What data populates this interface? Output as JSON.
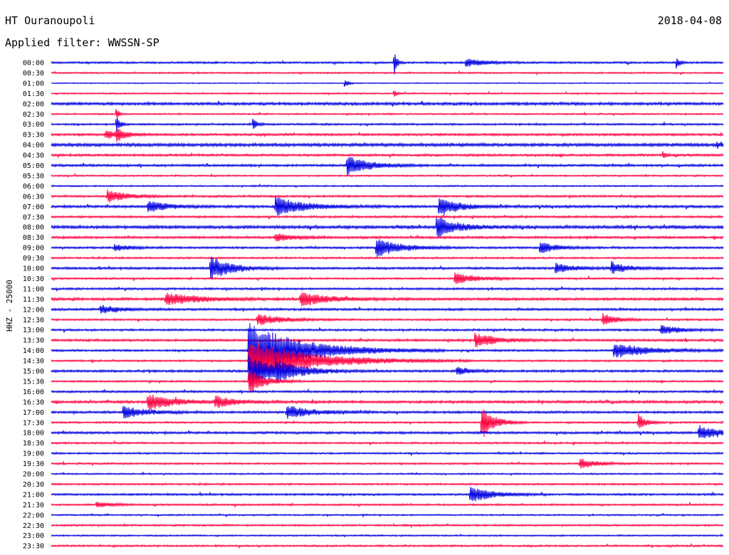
{
  "header": {
    "station": "HT Ouranoupoli",
    "date": "2018-04-08",
    "filter": "Applied filter: WWSSN-SP"
  },
  "colors": {
    "even_row": "#0000e0",
    "odd_row": "#ff0040"
  },
  "chart_data": {
    "type": "line",
    "title": "HT Ouranoupoli",
    "ylabel": "HHZ - 25000",
    "y_ticks": [
      "00:00",
      "00:30",
      "01:00",
      "01:30",
      "02:00",
      "02:30",
      "03:00",
      "03:30",
      "04:00",
      "04:30",
      "05:00",
      "05:30",
      "06:00",
      "06:30",
      "07:00",
      "07:30",
      "08:00",
      "08:30",
      "09:00",
      "09:30",
      "10:00",
      "10:30",
      "11:00",
      "11:30",
      "12:00",
      "12:30",
      "13:00",
      "13:30",
      "14:00",
      "14:30",
      "15:00",
      "15:30",
      "16:00",
      "16:30",
      "17:00",
      "17:30",
      "18:00",
      "18:30",
      "19:00",
      "19:30",
      "20:00",
      "20:30",
      "21:00",
      "21:30",
      "22:00",
      "22:30",
      "23:00",
      "23:30"
    ],
    "x_range_minutes": [
      0,
      30
    ],
    "noise_amplitude": [
      1.5,
      1.2,
      0.8,
      1.2,
      2.2,
      1.2,
      1.5,
      1.8,
      2.5,
      1.8,
      1.8,
      1.2,
      1.2,
      1.6,
      2.0,
      1.6,
      2.4,
      1.8,
      1.6,
      1.4,
      1.8,
      1.4,
      1.6,
      2.0,
      1.8,
      1.4,
      1.6,
      1.8,
      1.6,
      1.4,
      1.8,
      1.4,
      1.6,
      2.0,
      1.8,
      1.4,
      1.8,
      1.4,
      1.4,
      1.4,
      1.2,
      1.4,
      1.6,
      1.4,
      1.2,
      1.4,
      1.2,
      1.4
    ],
    "events": [
      {
        "row": 0,
        "t": 15.3,
        "amp": 18,
        "dur": 0.12
      },
      {
        "row": 0,
        "t": 18.5,
        "amp": 6,
        "dur": 0.8
      },
      {
        "row": 0,
        "t": 27.9,
        "amp": 8,
        "dur": 0.15
      },
      {
        "row": 2,
        "t": 13.1,
        "amp": 6,
        "dur": 0.15
      },
      {
        "row": 3,
        "t": 15.3,
        "amp": 6,
        "dur": 0.12
      },
      {
        "row": 5,
        "t": 2.9,
        "amp": 10,
        "dur": 0.1
      },
      {
        "row": 6,
        "t": 2.9,
        "amp": 14,
        "dur": 0.15
      },
      {
        "row": 6,
        "t": 9.0,
        "amp": 10,
        "dur": 0.15
      },
      {
        "row": 7,
        "t": 2.4,
        "amp": 6,
        "dur": 0.5
      },
      {
        "row": 7,
        "t": 2.9,
        "amp": 8,
        "dur": 0.4
      },
      {
        "row": 8,
        "t": 29.7,
        "amp": 5,
        "dur": 0.12
      },
      {
        "row": 9,
        "t": 27.3,
        "amp": 6,
        "dur": 0.12
      },
      {
        "row": 10,
        "t": 13.2,
        "amp": 14,
        "dur": 0.9
      },
      {
        "row": 13,
        "t": 2.5,
        "amp": 9,
        "dur": 0.8
      },
      {
        "row": 14,
        "t": 4.3,
        "amp": 8,
        "dur": 0.8
      },
      {
        "row": 14,
        "t": 10.0,
        "amp": 13,
        "dur": 1.2
      },
      {
        "row": 14,
        "t": 17.3,
        "amp": 14,
        "dur": 0.8
      },
      {
        "row": 16,
        "t": 17.2,
        "amp": 14,
        "dur": 0.9
      },
      {
        "row": 17,
        "t": 10.0,
        "amp": 6,
        "dur": 0.7
      },
      {
        "row": 18,
        "t": 2.8,
        "amp": 5,
        "dur": 0.6
      },
      {
        "row": 18,
        "t": 14.5,
        "amp": 14,
        "dur": 1.0
      },
      {
        "row": 18,
        "t": 21.8,
        "amp": 8,
        "dur": 0.7
      },
      {
        "row": 20,
        "t": 7.1,
        "amp": 18,
        "dur": 0.8
      },
      {
        "row": 20,
        "t": 22.5,
        "amp": 8,
        "dur": 0.7
      },
      {
        "row": 20,
        "t": 25.0,
        "amp": 8,
        "dur": 0.7
      },
      {
        "row": 21,
        "t": 18.0,
        "amp": 8,
        "dur": 0.9
      },
      {
        "row": 23,
        "t": 5.1,
        "amp": 9,
        "dur": 1.4
      },
      {
        "row": 23,
        "t": 11.1,
        "amp": 9,
        "dur": 1.2
      },
      {
        "row": 24,
        "t": 2.2,
        "amp": 6,
        "dur": 0.8
      },
      {
        "row": 25,
        "t": 9.2,
        "amp": 8,
        "dur": 1.0
      },
      {
        "row": 25,
        "t": 24.6,
        "amp": 8,
        "dur": 0.6
      },
      {
        "row": 26,
        "t": 27.2,
        "amp": 6,
        "dur": 0.8
      },
      {
        "row": 27,
        "t": 18.9,
        "amp": 10,
        "dur": 0.9
      },
      {
        "row": 28,
        "t": 8.8,
        "amp": 40,
        "dur": 2.2
      },
      {
        "row": 28,
        "t": 25.1,
        "amp": 10,
        "dur": 1.5
      },
      {
        "row": 29,
        "t": 8.8,
        "amp": 30,
        "dur": 2.5
      },
      {
        "row": 30,
        "t": 8.8,
        "amp": 25,
        "dur": 1.0
      },
      {
        "row": 30,
        "t": 10.0,
        "amp": 10,
        "dur": 1.2
      },
      {
        "row": 30,
        "t": 18.1,
        "amp": 6,
        "dur": 0.5
      },
      {
        "row": 31,
        "t": 8.8,
        "amp": 20,
        "dur": 0.6
      },
      {
        "row": 33,
        "t": 4.3,
        "amp": 12,
        "dur": 1.0
      },
      {
        "row": 33,
        "t": 7.3,
        "amp": 8,
        "dur": 0.8
      },
      {
        "row": 34,
        "t": 3.2,
        "amp": 8,
        "dur": 1.0
      },
      {
        "row": 34,
        "t": 10.5,
        "amp": 10,
        "dur": 1.0
      },
      {
        "row": 35,
        "t": 19.2,
        "amp": 25,
        "dur": 0.5
      },
      {
        "row": 35,
        "t": 26.2,
        "amp": 12,
        "dur": 0.3
      },
      {
        "row": 36,
        "t": 28.9,
        "amp": 10,
        "dur": 0.9
      },
      {
        "row": 39,
        "t": 23.6,
        "amp": 7,
        "dur": 0.7
      },
      {
        "row": 42,
        "t": 18.7,
        "amp": 12,
        "dur": 0.9
      },
      {
        "row": 43,
        "t": 2.0,
        "amp": 4,
        "dur": 0.6
      }
    ]
  }
}
